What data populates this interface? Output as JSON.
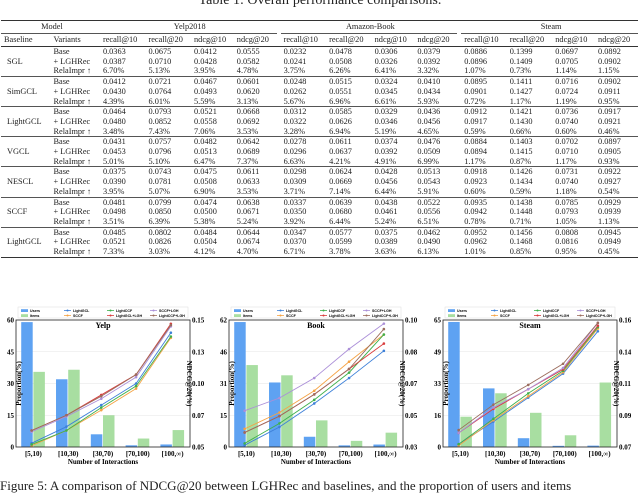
{
  "table": {
    "title": "Table 1: Overall performance comparisons.",
    "model_header": "Model",
    "datasets": [
      "Yelp2018",
      "Amazon-Book",
      "Steam"
    ],
    "baseline_header": "Baseline",
    "variants_header": "Variants",
    "metrics": [
      "recall@10",
      "recall@20",
      "ndcg@10",
      "ndcg@20"
    ],
    "groups": [
      {
        "baseline": "SGL",
        "rows": [
          {
            "variant": "Base",
            "values": [
              "0.0363",
              "0.0675",
              "0.0412",
              "0.0555",
              "0.0232",
              "0.0478",
              "0.0306",
              "0.0379",
              "0.0886",
              "0.1399",
              "0.0697",
              "0.0892"
            ]
          },
          {
            "variant": "+ LGHRec",
            "values": [
              "0.0387",
              "0.0710",
              "0.0428",
              "0.0582",
              "0.0241",
              "0.0508",
              "0.0326",
              "0.0392",
              "0.0896",
              "0.1409",
              "0.0705",
              "0.0902"
            ]
          },
          {
            "variant": "RelaImpr ↑",
            "values": [
              "6.70%",
              "5.13%",
              "3.95%",
              "4.78%",
              "3.75%",
              "6.26%",
              "6.41%",
              "3.32%",
              "1.07%",
              "0.73%",
              "1.14%",
              "1.15%"
            ]
          }
        ]
      },
      {
        "baseline": "SimGCL",
        "rows": [
          {
            "variant": "Base",
            "values": [
              "0.0412",
              "0.0721",
              "0.0467",
              "0.0601",
              "0.0248",
              "0.0515",
              "0.0324",
              "0.0410",
              "0.0895",
              "0.1411",
              "0.0716",
              "0.0902"
            ]
          },
          {
            "variant": "+ LGHRec",
            "values": [
              "0.0430",
              "0.0764",
              "0.0493",
              "0.0620",
              "0.0262",
              "0.0551",
              "0.0345",
              "0.0434",
              "0.0901",
              "0.1427",
              "0.0724",
              "0.0911"
            ]
          },
          {
            "variant": "RelaImpr ↑",
            "values": [
              "4.39%",
              "6.01%",
              "5.59%",
              "3.13%",
              "5.67%",
              "6.96%",
              "6.61%",
              "5.93%",
              "0.72%",
              "1.17%",
              "1.19%",
              "0.95%"
            ]
          }
        ]
      },
      {
        "baseline": "LightGCL",
        "rows": [
          {
            "variant": "Base",
            "values": [
              "0.0464",
              "0.0793",
              "0.0521",
              "0.0668",
              "0.0312",
              "0.0585",
              "0.0329",
              "0.0436",
              "0.0912",
              "0.1421",
              "0.0736",
              "0.0917"
            ]
          },
          {
            "variant": "+ LGHRec",
            "values": [
              "0.0480",
              "0.0852",
              "0.0558",
              "0.0692",
              "0.0322",
              "0.0626",
              "0.0346",
              "0.0456",
              "0.0917",
              "0.1430",
              "0.0740",
              "0.0921"
            ]
          },
          {
            "variant": "RelaImpr ↑",
            "values": [
              "3.48%",
              "7.43%",
              "7.06%",
              "3.53%",
              "3.28%",
              "6.94%",
              "5.19%",
              "4.65%",
              "0.59%",
              "0.66%",
              "0.60%",
              "0.46%"
            ]
          }
        ]
      },
      {
        "baseline": "VGCL",
        "rows": [
          {
            "variant": "Base",
            "values": [
              "0.0431",
              "0.0757",
              "0.0482",
              "0.0642",
              "0.0278",
              "0.0611",
              "0.0374",
              "0.0476",
              "0.0884",
              "0.1403",
              "0.0702",
              "0.0897"
            ]
          },
          {
            "variant": "+ LGHRec",
            "values": [
              "0.0453",
              "0.0796",
              "0.0513",
              "0.0689",
              "0.0296",
              "0.0637",
              "0.0392",
              "0.0509",
              "0.0894",
              "0.1415",
              "0.0710",
              "0.0905"
            ]
          },
          {
            "variant": "RelaImpr ↑",
            "values": [
              "5.01%",
              "5.10%",
              "6.47%",
              "7.37%",
              "6.63%",
              "4.21%",
              "4.91%",
              "6.99%",
              "1.17%",
              "0.87%",
              "1.17%",
              "0.93%"
            ]
          }
        ]
      },
      {
        "baseline": "NESCL",
        "rows": [
          {
            "variant": "Base",
            "values": [
              "0.0375",
              "0.0743",
              "0.0475",
              "0.0611",
              "0.0298",
              "0.0624",
              "0.0428",
              "0.0513",
              "0.0918",
              "0.1426",
              "0.0731",
              "0.0922"
            ]
          },
          {
            "variant": "+ LGHRec",
            "values": [
              "0.0390",
              "0.0781",
              "0.0508",
              "0.0633",
              "0.0309",
              "0.0669",
              "0.0456",
              "0.0543",
              "0.0923",
              "0.1434",
              "0.0740",
              "0.0927"
            ]
          },
          {
            "variant": "RelaImpr ↑",
            "values": [
              "3.95%",
              "5.07%",
              "6.90%",
              "3.53%",
              "3.71%",
              "7.14%",
              "6.44%",
              "5.91%",
              "0.60%",
              "0.59%",
              "1.18%",
              "0.54%"
            ]
          }
        ]
      },
      {
        "baseline": "SCCF",
        "rows": [
          {
            "variant": "Base",
            "values": [
              "0.0481",
              "0.0799",
              "0.0474",
              "0.0638",
              "0.0337",
              "0.0639",
              "0.0438",
              "0.0522",
              "0.0935",
              "0.1438",
              "0.0785",
              "0.0929"
            ]
          },
          {
            "variant": "+ LGHRec",
            "values": [
              "0.0498",
              "0.0850",
              "0.0500",
              "0.0671",
              "0.0350",
              "0.0680",
              "0.0461",
              "0.0556",
              "0.0942",
              "0.1448",
              "0.0793",
              "0.0939"
            ]
          },
          {
            "variant": "RelaImpr ↑",
            "values": [
              "3.51%",
              "6.39%",
              "5.38%",
              "5.24%",
              "3.92%",
              "6.44%",
              "5.24%",
              "6.51%",
              "0.78%",
              "0.71%",
              "1.05%",
              "1.13%"
            ]
          }
        ]
      },
      {
        "baseline": "LightGCL",
        "rows": [
          {
            "variant": "Base",
            "values": [
              "0.0485",
              "0.0802",
              "0.0484",
              "0.0644",
              "0.0347",
              "0.0577",
              "0.0375",
              "0.0462",
              "0.0952",
              "0.1456",
              "0.0808",
              "0.0945"
            ]
          },
          {
            "variant": "+ LGHRec",
            "values": [
              "0.0521",
              "0.0826",
              "0.0504",
              "0.0674",
              "0.0370",
              "0.0599",
              "0.0389",
              "0.0490",
              "0.0962",
              "0.1468",
              "0.0816",
              "0.0949"
            ]
          },
          {
            "variant": "RelaImpr ↑",
            "values": [
              "7.33%",
              "3.03%",
              "4.12%",
              "4.70%",
              "6.71%",
              "3.78%",
              "3.63%",
              "6.13%",
              "1.01%",
              "0.85%",
              "0.95%",
              "0.45%"
            ]
          }
        ]
      }
    ]
  },
  "colors": {
    "users": "#5ea2f2",
    "items": "#a8dea1",
    "LightGCL": "#3d80d8",
    "SCCF": "#f5a345",
    "LightCCF": "#3fb04c",
    "LightGCL+LGH": "#d93d3d",
    "SCCF+LGH": "#ab8fd8",
    "LightCCF+LGH": "#9b6c5d"
  },
  "chart_data": [
    {
      "type": "bar+line",
      "title": "Yelp",
      "xlabel": "Number of Interactions",
      "ylabel": "Proportion(%)",
      "y2label": "NDCG@20(%)",
      "categories": [
        "[5,10)",
        "[10,30)",
        "[30,70)",
        "[70,100)",
        "[100,∞)"
      ],
      "ylim": [
        0,
        60
      ],
      "yticks": [
        "0",
        "15",
        "30",
        "45",
        "60"
      ],
      "y2lim": [
        0.05,
        0.15
      ],
      "y2ticks": [
        "0.05",
        "0.07",
        "0.10",
        "0.13",
        "0.15"
      ],
      "legend": [
        "Users",
        "Items",
        "LightGCL",
        "SCCF",
        "LightCCF",
        "LightGCL+LGH",
        "SCCF+LGH",
        "LightCCF+LGH"
      ],
      "bars": [
        {
          "name": "Users",
          "values": [
            59,
            32,
            6,
            0.8,
            1.2
          ]
        },
        {
          "name": "Items",
          "values": [
            35.5,
            36.5,
            15,
            4,
            8
          ]
        }
      ],
      "series": [
        {
          "name": "LightGCL",
          "values": [
            0.053,
            0.066,
            0.083,
            0.1,
            0.14
          ]
        },
        {
          "name": "SCCF",
          "values": [
            0.051,
            0.063,
            0.079,
            0.096,
            0.136
          ]
        },
        {
          "name": "LightCCF",
          "values": [
            0.052,
            0.063,
            0.081,
            0.098,
            0.137
          ]
        },
        {
          "name": "LightGCL+LGH",
          "values": [
            0.063,
            0.075,
            0.091,
            0.107,
            0.147
          ]
        },
        {
          "name": "SCCF+LGH",
          "values": [
            0.062,
            0.074,
            0.088,
            0.105,
            0.145
          ]
        },
        {
          "name": "LightCCF+LGH",
          "values": [
            0.063,
            0.075,
            0.09,
            0.107,
            0.146
          ]
        }
      ]
    },
    {
      "type": "bar+line",
      "title": "Book",
      "xlabel": "Number of Interactions",
      "ylabel": "Proportion(%)",
      "y2label": "NDCG@20(%)",
      "categories": [
        "[5,10)",
        "[10,30)",
        "[30,70)",
        "[70,100)",
        "[100,∞)"
      ],
      "ylim": [
        0,
        62
      ],
      "yticks": [
        "0",
        "15",
        "31",
        "46",
        "62"
      ],
      "y2lim": [
        0.03,
        0.1
      ],
      "y2ticks": [
        "0.03",
        "0.05",
        "0.07",
        "0.08",
        "0.10"
      ],
      "legend": [
        "Users",
        "Items",
        "LightGCL",
        "SCCF",
        "LightCCF",
        "LightGCL+LGH",
        "SCCF+LGH",
        "LightCCF+LGH"
      ],
      "bars": [
        {
          "name": "Users",
          "values": [
            61,
            31.5,
            5,
            0.8,
            1.2
          ]
        },
        {
          "name": "Items",
          "values": [
            40,
            35,
            13,
            3,
            7
          ]
        }
      ],
      "series": [
        {
          "name": "LightGCL",
          "values": [
            0.031,
            0.041,
            0.054,
            0.068,
            0.083
          ]
        },
        {
          "name": "SCCF",
          "values": [
            0.04,
            0.049,
            0.061,
            0.077,
            0.092
          ]
        },
        {
          "name": "LightCCF",
          "values": [
            0.032,
            0.043,
            0.056,
            0.071,
            0.092
          ]
        },
        {
          "name": "LightGCL+LGH",
          "values": [
            0.038,
            0.047,
            0.059,
            0.073,
            0.087
          ]
        },
        {
          "name": "SCCF+LGH",
          "values": [
            0.05,
            0.057,
            0.068,
            0.084,
            0.098
          ]
        },
        {
          "name": "LightCCF+LGH",
          "values": [
            0.038,
            0.047,
            0.059,
            0.073,
            0.095
          ]
        }
      ]
    },
    {
      "type": "bar+line",
      "title": "Steam",
      "xlabel": "Number of Interactions",
      "ylabel": "Proportion(%)",
      "y2label": "NDCG@20(%)",
      "categories": [
        "[5,10)",
        "[10,30)",
        "[30,70)",
        "[70,100)",
        "[100,∞)"
      ],
      "ylim": [
        0,
        65
      ],
      "yticks": [
        "0",
        "16",
        "33",
        "49",
        "65"
      ],
      "y2lim": [
        0.07,
        0.16
      ],
      "y2ticks": [
        "0.07",
        "0.09",
        "0.11",
        "0.14",
        "0.16"
      ],
      "legend": [
        "Users",
        "Items",
        "LightGCL",
        "SCCF",
        "LightCCF",
        "LightGCL+LGH",
        "SCCF+LGH",
        "LightCCF+LGH"
      ],
      "bars": [
        {
          "name": "Users",
          "values": [
            64,
            30,
            4.5,
            0.6,
            0.7
          ]
        },
        {
          "name": "Items",
          "values": [
            15.5,
            27.5,
            17.5,
            6,
            33
          ]
        }
      ],
      "series": [
        {
          "name": "LightGCL",
          "values": [
            0.072,
            0.088,
            0.105,
            0.122,
            0.152
          ]
        },
        {
          "name": "SCCF",
          "values": [
            0.071,
            0.089,
            0.106,
            0.123,
            0.154
          ]
        },
        {
          "name": "LightCCF",
          "values": [
            0.072,
            0.09,
            0.108,
            0.124,
            0.155
          ]
        },
        {
          "name": "LightGCL+LGH",
          "values": [
            0.08,
            0.097,
            0.111,
            0.125,
            0.156
          ]
        },
        {
          "name": "SCCF+LGH",
          "values": [
            0.08,
            0.098,
            0.111,
            0.126,
            0.158
          ]
        },
        {
          "name": "LightCCF+LGH",
          "values": [
            0.082,
            0.1,
            0.114,
            0.129,
            0.158
          ]
        }
      ]
    }
  ],
  "caption": "Figure 5: A comparison of NDCG@20 between LGHRec and baselines, and the proportion of users and items"
}
